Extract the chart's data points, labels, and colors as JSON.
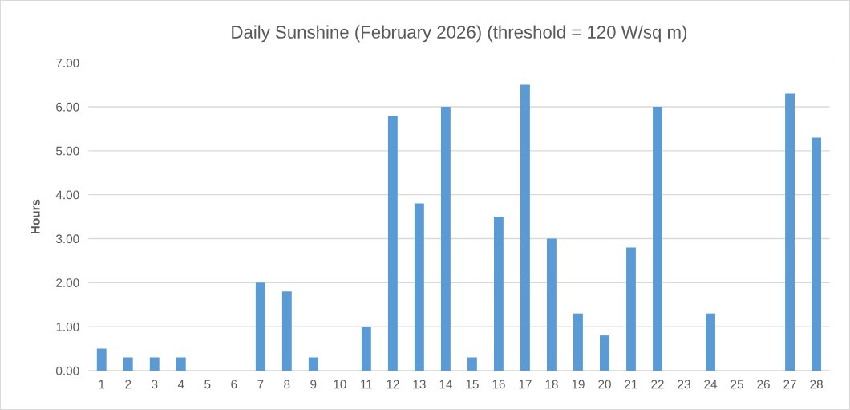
{
  "chart_data": {
    "type": "bar",
    "title": "Daily Sunshine (February 2026) (threshold = 120 W/sq m)",
    "ylabel": "Hours",
    "categories": [
      "1",
      "2",
      "3",
      "4",
      "5",
      "6",
      "7",
      "8",
      "9",
      "10",
      "11",
      "12",
      "13",
      "14",
      "15",
      "16",
      "17",
      "18",
      "19",
      "20",
      "21",
      "22",
      "23",
      "24",
      "25",
      "26",
      "27",
      "28"
    ],
    "values": [
      0.5,
      0.3,
      0.3,
      0.3,
      0,
      0,
      2.0,
      1.8,
      0.3,
      0,
      1.0,
      5.8,
      3.8,
      6.0,
      0.3,
      3.5,
      6.5,
      3.0,
      1.3,
      0.8,
      2.8,
      6.0,
      0,
      1.3,
      0,
      0,
      6.3,
      5.3
    ],
    "color": "#5b9bd5",
    "ylim": [
      0,
      7
    ],
    "yticks": [
      {
        "value": 0,
        "label": "0.00"
      },
      {
        "value": 1,
        "label": "1.00"
      },
      {
        "value": 2,
        "label": "2.00"
      },
      {
        "value": 3,
        "label": "3.00"
      },
      {
        "value": 4,
        "label": "4.00"
      },
      {
        "value": 5,
        "label": "5.00"
      },
      {
        "value": 6,
        "label": "6.00"
      },
      {
        "value": 7,
        "label": "7.00"
      }
    ],
    "grid": "y"
  }
}
